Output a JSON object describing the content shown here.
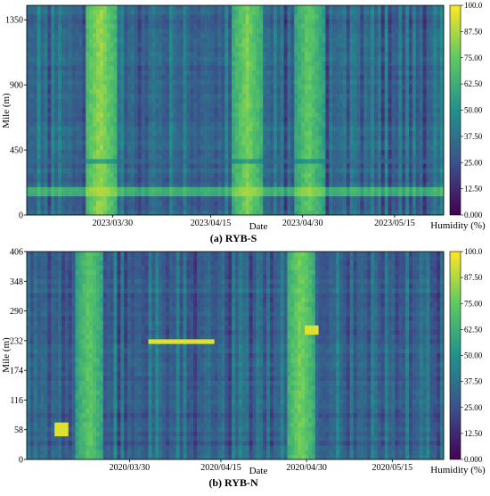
{
  "chart_data": [
    {
      "type": "heatmap",
      "panel": "top",
      "caption": "(a) RYB-S",
      "xlabel": "Date",
      "ylabel": "Mile (m)",
      "colorbar_label": "Humidity (%)",
      "colormap": [
        "#440154",
        "#3b528b",
        "#21918c",
        "#5ec962",
        "#fde725"
      ],
      "x_range": [
        "2023-03-16",
        "2023-05-23"
      ],
      "x_ticks": [
        "2023/03/30",
        "2023/04/15",
        "2023/04/30",
        "2023/05/15"
      ],
      "ylim": [
        0,
        1450
      ],
      "y_ticks": [
        0,
        450,
        900,
        1350
      ],
      "y_tick_labels": [
        "0",
        "450",
        "900",
        "1350"
      ],
      "zlim": [
        0,
        100
      ],
      "colorbar_ticks": [
        "0.000",
        "12.50",
        "25.00",
        "37.50",
        "50.00",
        "62.50",
        "75.00",
        "87.50",
        "100.0"
      ],
      "notable_features": [
        {
          "description": "bright high-humidity vertical band",
          "x": "2023/03/28",
          "value": 85
        },
        {
          "description": "high-humidity vertical band",
          "x": "2023/04/21",
          "value": 80
        },
        {
          "description": "high-humidity vertical band",
          "x": "2023/05/01",
          "value": 75
        },
        {
          "description": "horizontal stripe",
          "y": 380,
          "value": 35
        },
        {
          "description": "horizontal bright segment",
          "y": 160,
          "value": 95
        }
      ]
    },
    {
      "type": "heatmap",
      "panel": "bottom",
      "caption": "(b) RYB-N",
      "xlabel": "Date",
      "ylabel": "Mile (m)",
      "colorbar_label": "Humidity (%)",
      "colormap": [
        "#440154",
        "#3b528b",
        "#21918c",
        "#5ec962",
        "#fde725"
      ],
      "x_range": [
        "2020-03-12",
        "2020-05-24"
      ],
      "x_ticks": [
        "2020/03/30",
        "2020/04/15",
        "2020/04/30",
        "2020/05/15"
      ],
      "ylim": [
        0,
        406
      ],
      "y_ticks": [
        0,
        58,
        116,
        174,
        232,
        290,
        348,
        406
      ],
      "y_tick_labels": [
        "0",
        "58",
        "116",
        "174",
        "232",
        "290",
        "348",
        "406"
      ],
      "zlim": [
        0,
        100
      ],
      "colorbar_ticks": [
        "0.000",
        "12.50",
        "25.00",
        "37.50",
        "50.00",
        "62.50",
        "75.00",
        "87.50",
        "100.0"
      ],
      "notable_features": [
        {
          "description": "bright horizontal stripe",
          "y": 232,
          "x_from": "2020/04/02",
          "x_to": "2020/04/14",
          "value": 95
        },
        {
          "description": "high-humidity vertical band",
          "x": "2020/03/23",
          "value": 75
        },
        {
          "description": "high-humidity vertical band",
          "x": "2020/04/29",
          "value": 80
        },
        {
          "description": "bright spot",
          "y": 256,
          "x": "2020/05/01",
          "value": 95
        },
        {
          "description": "bright spot",
          "y": 58,
          "x": "2020/03/18",
          "value": 95
        }
      ]
    }
  ]
}
